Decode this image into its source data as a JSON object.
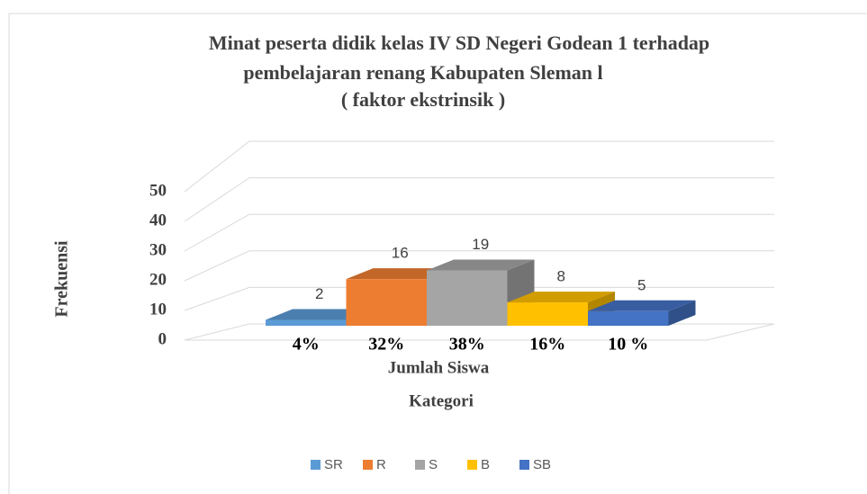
{
  "chart_data": {
    "type": "bar3d",
    "title": [
      "Minat peserta didik kelas IV SD Negeri Godean 1 terhadap",
      "pembelajaran renang Kabupaten Sleman l",
      "( faktor ekstrinsik )"
    ],
    "x_label": "Jumlah Siswa",
    "x_label_2": "Kategori",
    "y_label": "Frekuensi",
    "ylim": [
      0,
      50
    ],
    "yticks": [
      0,
      10,
      20,
      30,
      40,
      50
    ],
    "grid": true,
    "legend": "bottom",
    "series": [
      {
        "name": "SR",
        "color": "#5b9bd5",
        "values": [
          2
        ],
        "share_label": "4%"
      },
      {
        "name": "R",
        "color": "#ed7d31",
        "values": [
          16
        ],
        "share_label": "32%"
      },
      {
        "name": "S",
        "color": "#a5a5a5",
        "values": [
          19
        ],
        "share_label": "38%"
      },
      {
        "name": "B",
        "color": "#ffc000",
        "values": [
          8
        ],
        "share_label": "16%"
      },
      {
        "name": "SB",
        "color": "#4472c4",
        "values": [
          5
        ],
        "share_label": "10 %"
      }
    ]
  }
}
